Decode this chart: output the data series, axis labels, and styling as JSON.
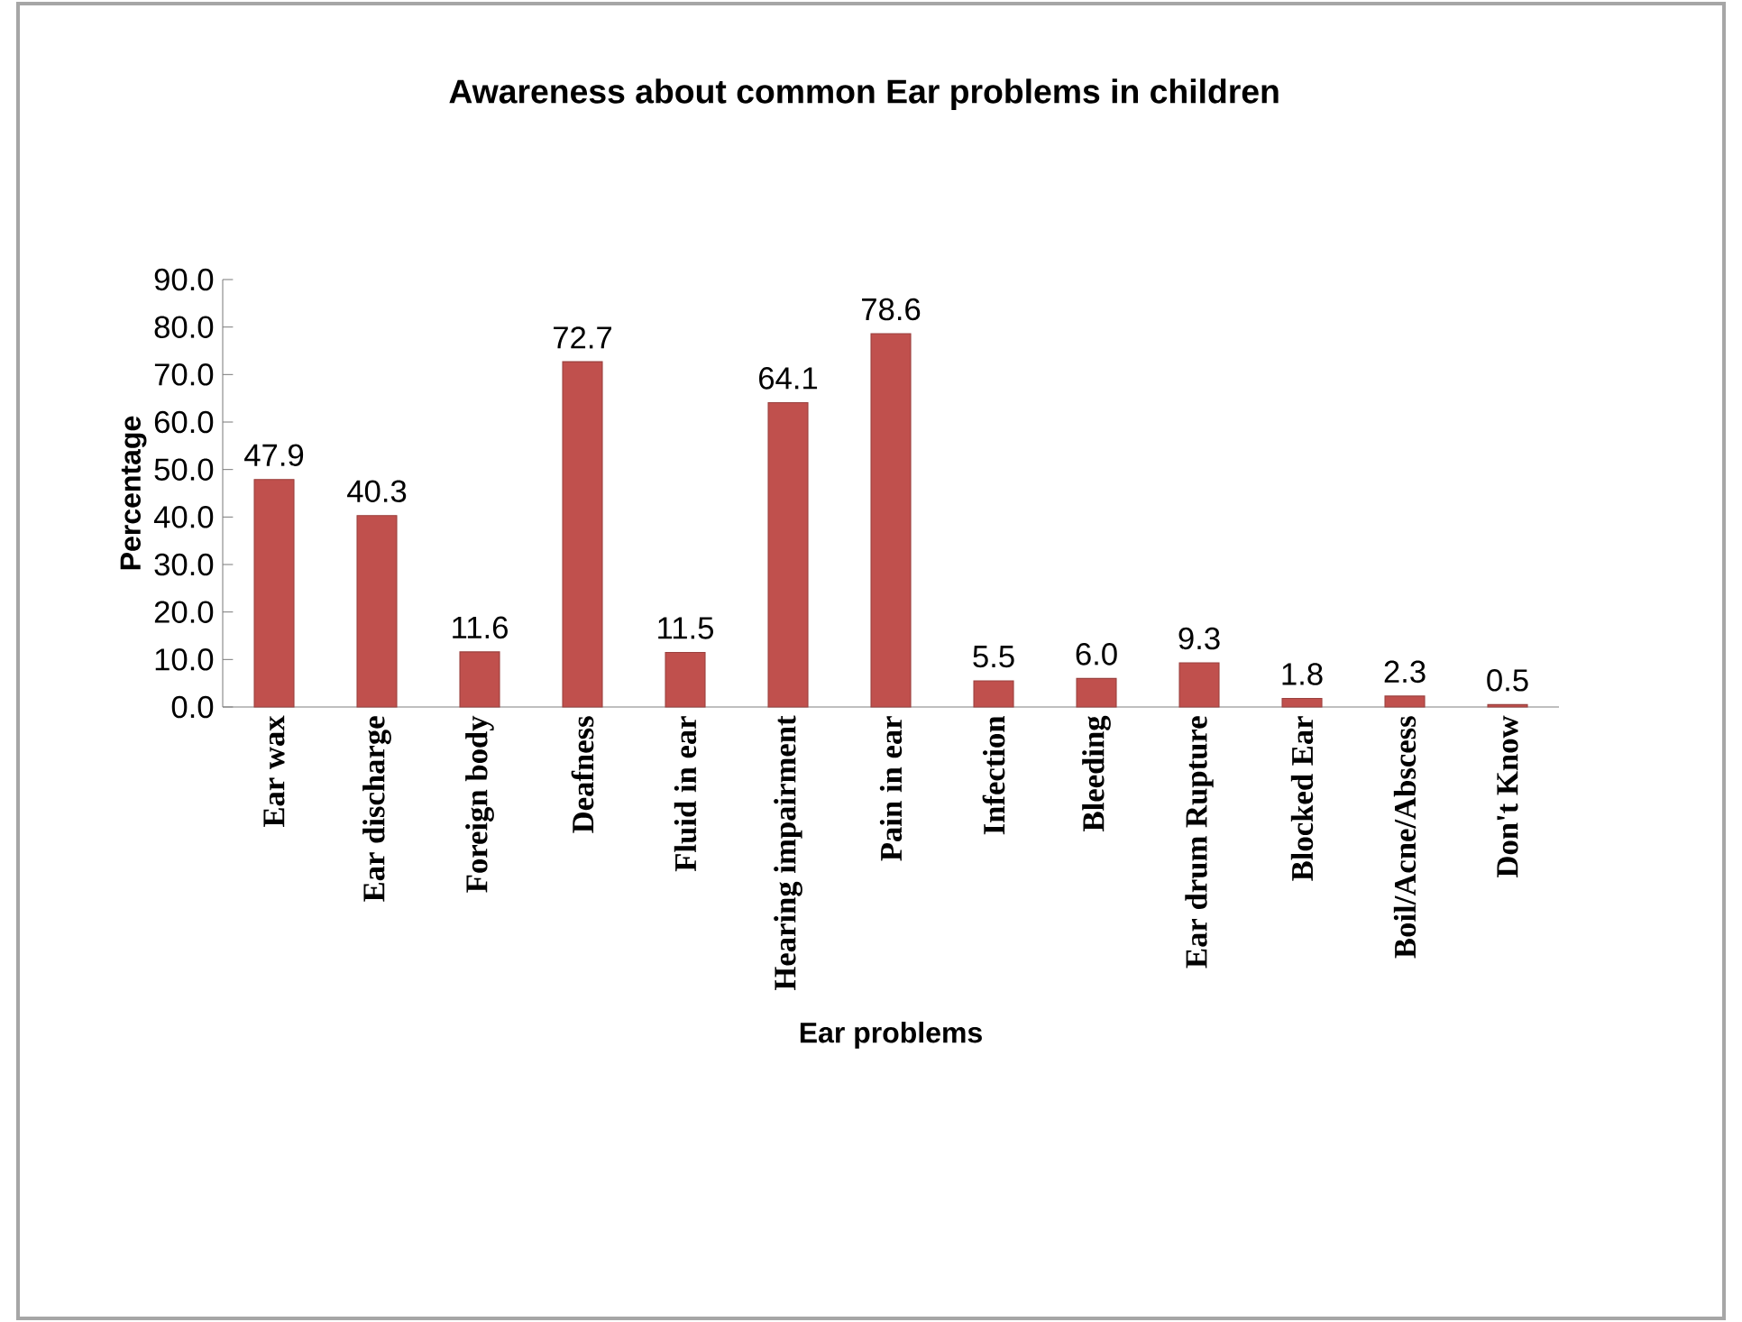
{
  "chart_data": {
    "type": "bar",
    "title": "Awareness about common Ear problems in children",
    "xlabel": "Ear problems",
    "ylabel": "Percentage",
    "categories": [
      "Ear wax",
      "Ear discharge",
      "Foreign body",
      "Deafness",
      "Fluid in ear",
      "Hearing impairment",
      "Pain in ear",
      "Infection",
      "Bleeding",
      "Ear drum Rupture",
      "Blocked Ear",
      "Boil/Acne/Abscess",
      "Don't Know"
    ],
    "values": [
      47.9,
      40.3,
      11.6,
      72.7,
      11.5,
      64.1,
      78.6,
      5.5,
      6.0,
      9.3,
      1.8,
      2.3,
      0.5
    ],
    "value_labels": [
      "47.9",
      "40.3",
      "11.6",
      "72.7",
      "11.5",
      "64.1",
      "78.6",
      "5.5",
      "6.0",
      "9.3",
      "1.8",
      "2.3",
      "0.5"
    ],
    "color": "#c0504d",
    "ylim": [
      0,
      90
    ],
    "yticks": [
      {
        "value": 0,
        "label": "0.0"
      },
      {
        "value": 10,
        "label": "10.0"
      },
      {
        "value": 20,
        "label": "20.0"
      },
      {
        "value": 30,
        "label": "30.0"
      },
      {
        "value": 40,
        "label": "40.0"
      },
      {
        "value": 50,
        "label": "50.0"
      },
      {
        "value": 60,
        "label": "60.0"
      },
      {
        "value": 70,
        "label": "70.0"
      },
      {
        "value": 80,
        "label": "80.0"
      },
      {
        "value": 90,
        "label": "90.0"
      }
    ],
    "grid": false
  }
}
